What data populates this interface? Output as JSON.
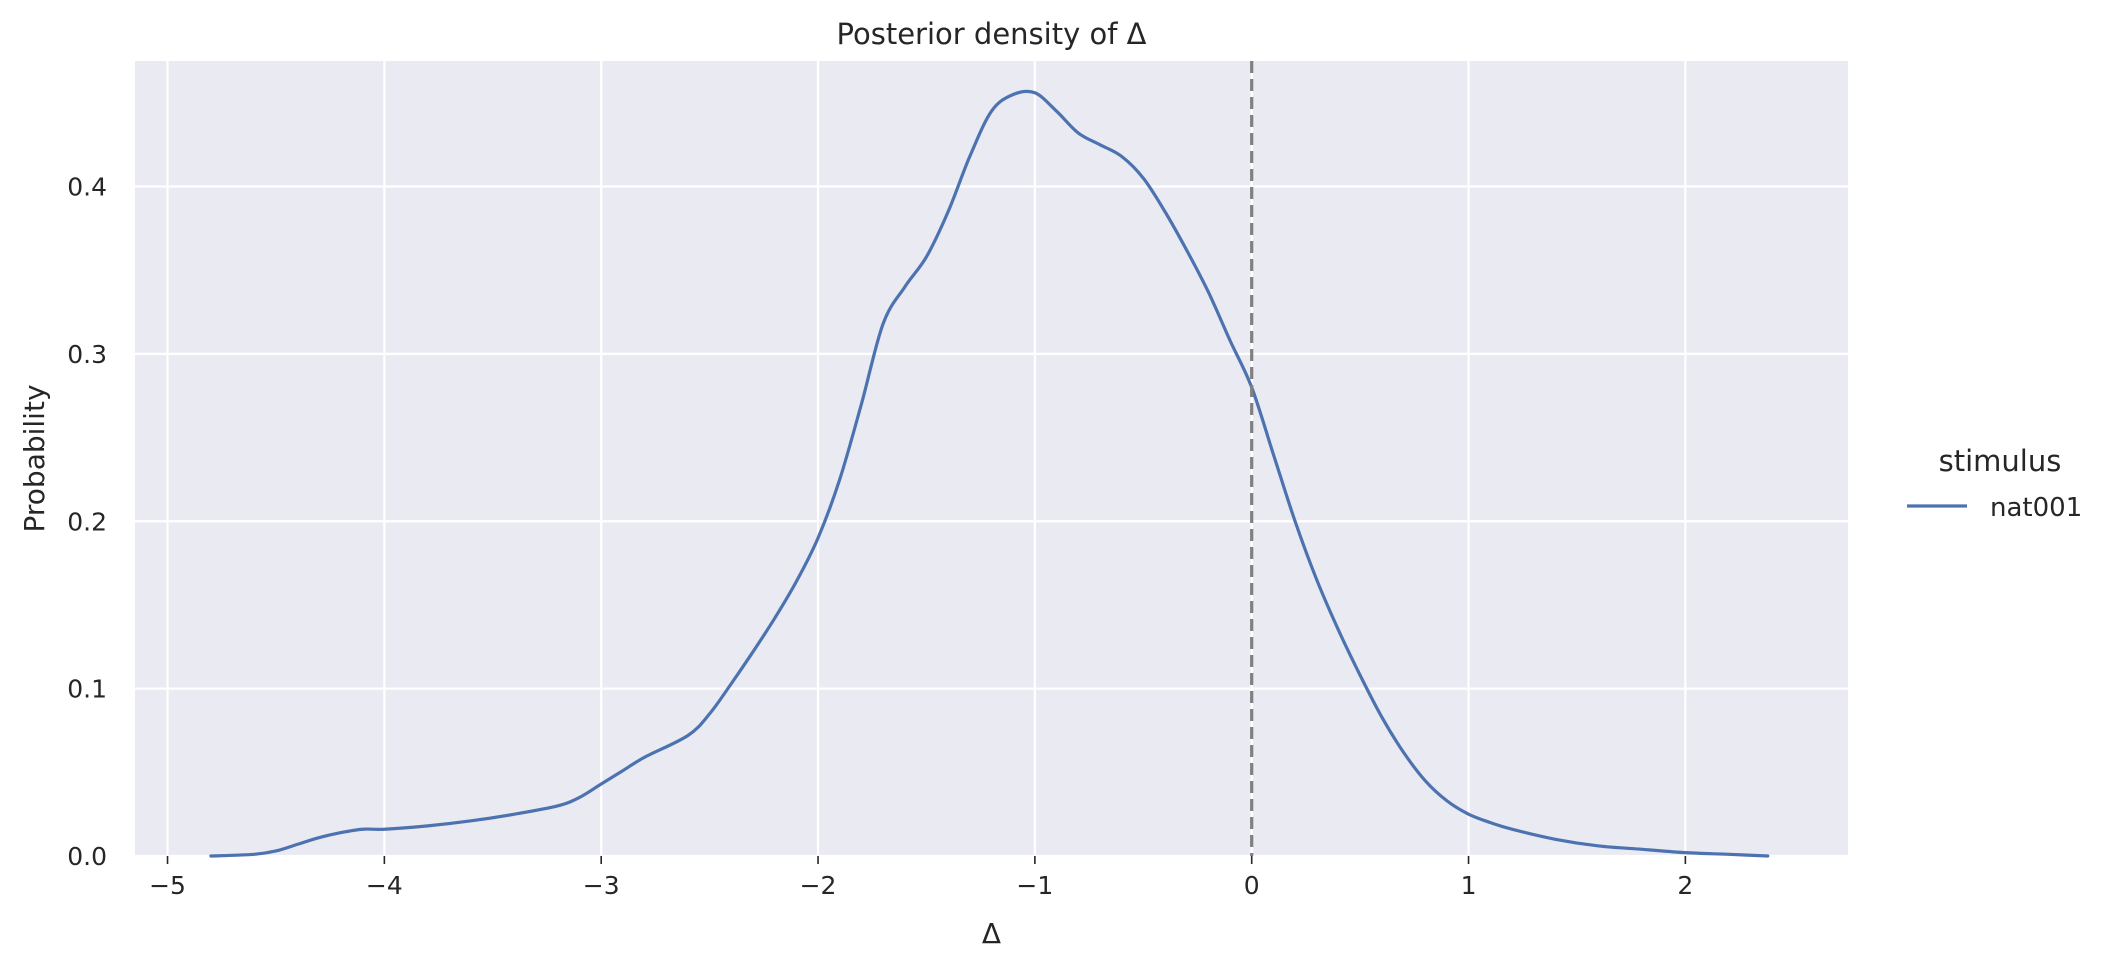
{
  "chart_data": {
    "type": "line",
    "title": "Posterior density of Δ",
    "xlabel": "Δ",
    "ylabel": "Probability",
    "xlim": [
      -5.15,
      2.75
    ],
    "ylim": [
      0,
      0.475
    ],
    "xticks": [
      -5,
      -4,
      -3,
      -2,
      -1,
      0,
      1,
      2
    ],
    "xtick_labels": [
      "−5",
      "−4",
      "−3",
      "−2",
      "−1",
      "0",
      "1",
      "2"
    ],
    "yticks": [
      0.0,
      0.1,
      0.2,
      0.3,
      0.4
    ],
    "ytick_labels": [
      "0.0",
      "0.1",
      "0.2",
      "0.3",
      "0.4"
    ],
    "grid": true,
    "reference_line": {
      "x": 0,
      "style": "dashed",
      "color": "#808080"
    },
    "legend": {
      "title": "stimulus",
      "placement": "right"
    },
    "series": [
      {
        "name": "nat001",
        "color": "#4c72b0",
        "x": [
          -4.8,
          -4.6,
          -4.5,
          -4.4,
          -4.3,
          -4.2,
          -4.1,
          -4.0,
          -3.8,
          -3.6,
          -3.4,
          -3.2,
          -3.1,
          -3.0,
          -2.9,
          -2.8,
          -2.6,
          -2.5,
          -2.4,
          -2.3,
          -2.2,
          -2.1,
          -2.0,
          -1.9,
          -1.8,
          -1.7,
          -1.6,
          -1.5,
          -1.4,
          -1.3,
          -1.2,
          -1.1,
          -1.0,
          -0.9,
          -0.8,
          -0.7,
          -0.6,
          -0.5,
          -0.4,
          -0.3,
          -0.2,
          -0.1,
          0.0,
          0.1,
          0.2,
          0.3,
          0.4,
          0.5,
          0.6,
          0.7,
          0.8,
          0.9,
          1.0,
          1.1,
          1.2,
          1.4,
          1.6,
          1.8,
          2.0,
          2.2,
          2.38
        ],
        "y": [
          0.0,
          0.001,
          0.003,
          0.007,
          0.011,
          0.014,
          0.016,
          0.016,
          0.018,
          0.021,
          0.025,
          0.03,
          0.035,
          0.043,
          0.051,
          0.059,
          0.072,
          0.085,
          0.103,
          0.122,
          0.142,
          0.164,
          0.19,
          0.225,
          0.27,
          0.318,
          0.34,
          0.358,
          0.385,
          0.418,
          0.445,
          0.455,
          0.456,
          0.445,
          0.432,
          0.425,
          0.418,
          0.405,
          0.385,
          0.362,
          0.337,
          0.308,
          0.28,
          0.24,
          0.2,
          0.165,
          0.135,
          0.108,
          0.083,
          0.062,
          0.045,
          0.033,
          0.025,
          0.02,
          0.016,
          0.01,
          0.006,
          0.004,
          0.002,
          0.001,
          0.0
        ]
      }
    ]
  }
}
